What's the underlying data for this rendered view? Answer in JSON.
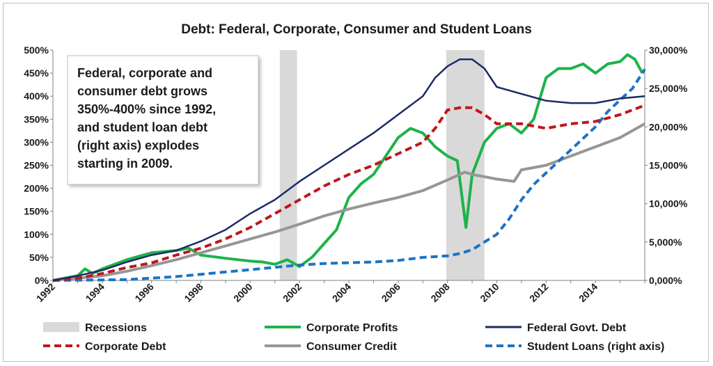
{
  "chart_data": {
    "type": "line",
    "title": "Debt: Federal, Corporate, Consumer and Student Loans",
    "x_range": [
      1992,
      2016
    ],
    "x_tick_labels": [
      "1992",
      "1994",
      "1996",
      "1998",
      "2000",
      "2002",
      "2004",
      "2006",
      "2008",
      "2010",
      "2012",
      "2014"
    ],
    "y_left": {
      "range": [
        0,
        500
      ],
      "ticks": [
        0,
        50,
        100,
        150,
        200,
        250,
        300,
        350,
        400,
        450,
        500
      ],
      "tick_labels": [
        "0%",
        "50%",
        "100%",
        "150%",
        "200%",
        "250%",
        "300%",
        "350%",
        "400%",
        "450%",
        "500%"
      ]
    },
    "y_right": {
      "range": [
        0,
        30000
      ],
      "ticks": [
        0,
        5000,
        10000,
        15000,
        20000,
        25000,
        30000
      ],
      "tick_labels": [
        "0,000%",
        "5,000%",
        "10,000%",
        "15,000%",
        "20,000%",
        "25,000%",
        "30,000%"
      ]
    },
    "grid": false,
    "recessions": [
      [
        2001.2,
        2001.9
      ],
      [
        2007.95,
        2009.5
      ]
    ],
    "series": [
      {
        "name": "Corporate Profits",
        "axis": "left",
        "color": "#1db34a",
        "dash": "solid",
        "x": [
          1992,
          1993,
          1993.3,
          1993.6,
          1994,
          1995,
          1996,
          1997,
          1997.5,
          1998,
          1999,
          1999.5,
          2000,
          2000.5,
          2001,
          2001.5,
          2002,
          2002.5,
          2003,
          2003.5,
          2004,
          2004.5,
          2005,
          2005.5,
          2006,
          2006.5,
          2007,
          2007.5,
          2008,
          2008.4,
          2008.75,
          2009,
          2009.5,
          2010,
          2010.5,
          2011,
          2011.5,
          2012,
          2012.5,
          2013,
          2013.5,
          2014,
          2014.5,
          2015,
          2015.3,
          2015.6,
          2015.9
        ],
        "values": [
          0,
          10,
          25,
          15,
          25,
          45,
          60,
          65,
          70,
          55,
          48,
          45,
          42,
          40,
          35,
          45,
          30,
          50,
          80,
          110,
          180,
          210,
          230,
          270,
          310,
          330,
          320,
          290,
          270,
          260,
          115,
          230,
          300,
          330,
          340,
          320,
          350,
          440,
          460,
          460,
          470,
          450,
          470,
          475,
          490,
          480,
          450
        ]
      },
      {
        "name": "Federal Govt. Debt",
        "axis": "left",
        "color": "#1c2a66",
        "dash": "solid",
        "x": [
          1992,
          1993,
          1994,
          1995,
          1996,
          1997,
          1998,
          1999,
          2000,
          2001,
          2002,
          2003,
          2004,
          2005,
          2006,
          2007,
          2007.5,
          2008,
          2008.5,
          2009,
          2009.5,
          2010,
          2011,
          2012,
          2013,
          2014,
          2015,
          2016
        ],
        "values": [
          0,
          10,
          22,
          40,
          55,
          65,
          85,
          110,
          145,
          175,
          215,
          250,
          285,
          320,
          360,
          400,
          440,
          465,
          480,
          480,
          460,
          420,
          405,
          390,
          385,
          385,
          395,
          400
        ]
      },
      {
        "name": "Corporate Debt",
        "axis": "left",
        "color": "#c0161b",
        "dash": "dash",
        "x": [
          1992,
          1993,
          1994,
          1995,
          1996,
          1997,
          1998,
          1999,
          2000,
          2001,
          2002,
          2003,
          2004,
          2005,
          2006,
          2007,
          2007.5,
          2008,
          2008.5,
          2009,
          2009.5,
          2010,
          2011,
          2012,
          2013,
          2014,
          2015,
          2016
        ],
        "values": [
          0,
          5,
          15,
          28,
          38,
          55,
          70,
          90,
          115,
          145,
          175,
          205,
          230,
          250,
          275,
          300,
          330,
          370,
          375,
          375,
          360,
          340,
          340,
          330,
          340,
          345,
          360,
          380
        ]
      },
      {
        "name": "Consumer Credit",
        "axis": "left",
        "color": "#969696",
        "dash": "solid",
        "x": [
          1992,
          1993,
          1994,
          1995,
          1996,
          1997,
          1998,
          1999,
          2000,
          2001,
          2002,
          2003,
          2004,
          2005,
          2006,
          2007,
          2008,
          2008.7,
          2009,
          2010,
          2010.7,
          2011,
          2012,
          2013,
          2014,
          2015,
          2016
        ],
        "values": [
          0,
          5,
          10,
          20,
          32,
          45,
          60,
          75,
          90,
          105,
          122,
          140,
          155,
          168,
          180,
          195,
          218,
          235,
          230,
          220,
          215,
          240,
          250,
          270,
          290,
          310,
          340
        ]
      },
      {
        "name": "Student Loans (right axis)",
        "axis": "right",
        "color": "#1b74c4",
        "dash": "dash",
        "x": [
          1992,
          1995,
          1996,
          1997,
          1998,
          1999,
          2000,
          2001,
          2002,
          2003,
          2004,
          2005,
          2006,
          2007,
          2008,
          2008.5,
          2009,
          2009.5,
          2010,
          2010.5,
          2011,
          2011.5,
          2012,
          2012.5,
          2013,
          2013.5,
          2014,
          2014.5,
          2015,
          2015.5,
          2016
        ],
        "values": [
          0,
          100,
          300,
          500,
          800,
          1100,
          1400,
          1700,
          2000,
          2200,
          2300,
          2400,
          2600,
          3000,
          3200,
          3500,
          4000,
          5000,
          6000,
          8000,
          10500,
          12500,
          14000,
          15500,
          17000,
          18500,
          20000,
          22000,
          23500,
          25000,
          27500
        ]
      }
    ],
    "legend": {
      "position": "bottom",
      "items": [
        {
          "label": "Recessions",
          "kind": "band",
          "color": "#d9d9d9"
        },
        {
          "label": "Corporate Profits",
          "kind": "solid",
          "color": "#1db34a"
        },
        {
          "label": "Federal Govt. Debt",
          "kind": "solid",
          "color": "#1c2a66"
        },
        {
          "label": "Corporate Debt",
          "kind": "dash",
          "color": "#c0161b"
        },
        {
          "label": "Consumer Credit",
          "kind": "solid",
          "color": "#969696"
        },
        {
          "label": "Student Loans (right axis)",
          "kind": "dash",
          "color": "#1b74c4"
        }
      ]
    },
    "annotation": {
      "lines": [
        "Federal, corporate and",
        "consumer debt grows",
        "350%-400% since 1992,",
        "and student loan debt",
        "(right axis) explodes",
        "starting in 2009."
      ]
    }
  }
}
